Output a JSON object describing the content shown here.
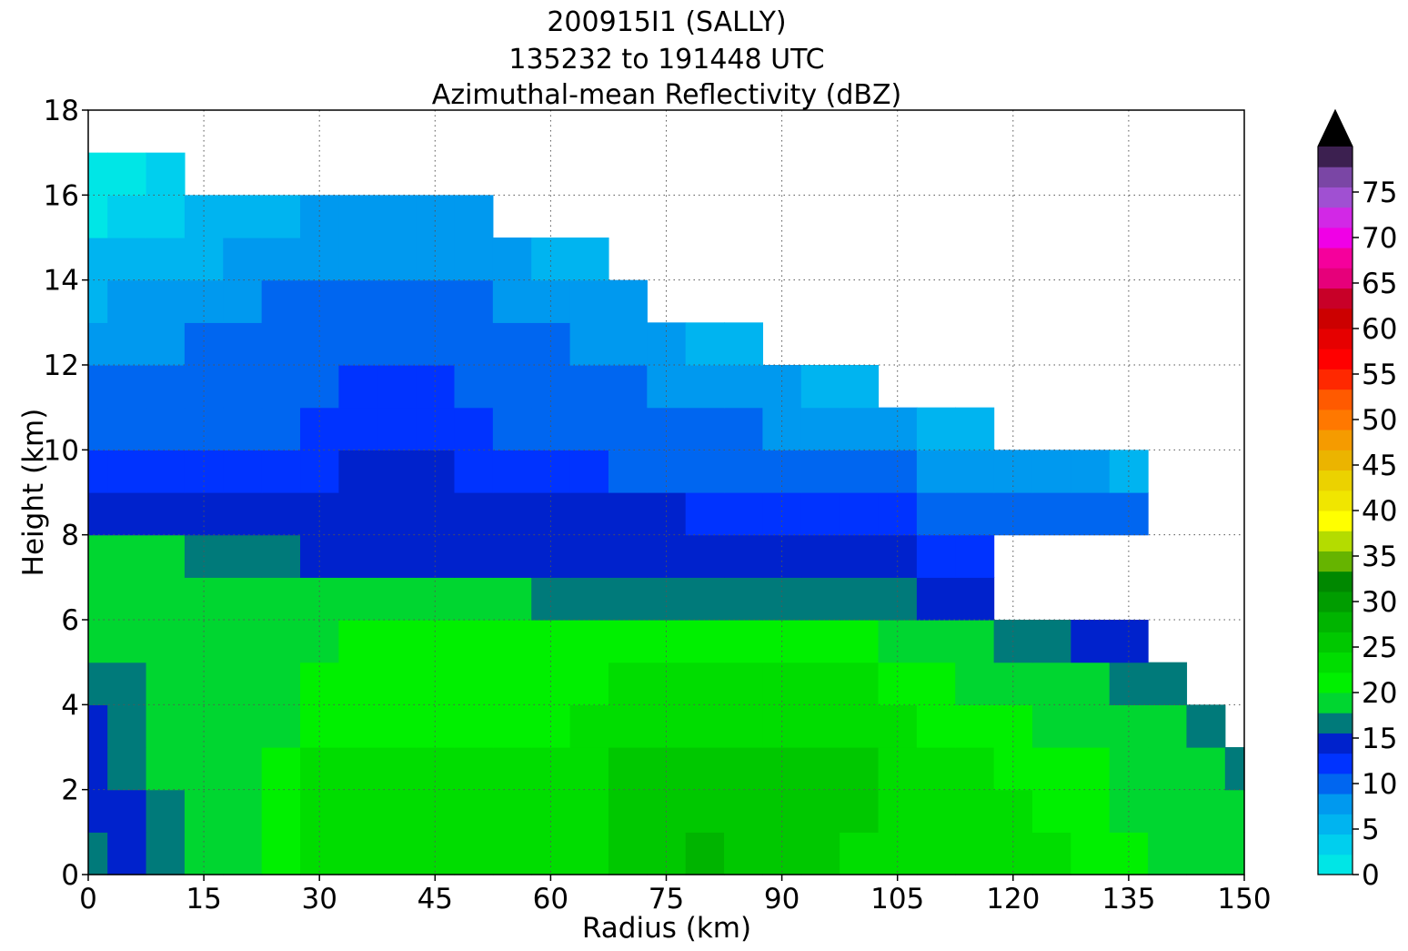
{
  "chart_data": {
    "type": "heatmap",
    "title": [
      "200915I1 (SALLY)",
      "135232 to 191448 UTC",
      "Azimuthal-mean Reflectivity (dBZ)"
    ],
    "xlabel": "Radius (km)",
    "ylabel": "Height (km)",
    "xlim": [
      0,
      150
    ],
    "ylim": [
      0,
      18
    ],
    "xticks": [
      0,
      15,
      30,
      45,
      60,
      75,
      90,
      105,
      120,
      135,
      150
    ],
    "yticks": [
      0,
      2,
      4,
      6,
      8,
      10,
      12,
      14,
      16,
      18
    ],
    "grid": true,
    "colorbar": {
      "min": 0,
      "max": 80,
      "step": 2.5,
      "extend": "max",
      "tick_labels": [
        0,
        5,
        10,
        15,
        20,
        25,
        30,
        35,
        40,
        45,
        50,
        55,
        60,
        65,
        70,
        75
      ],
      "colors": [
        "#00e6e6",
        "#00cfee",
        "#00b4f0",
        "#0099ef",
        "#0066f0",
        "#0033ff",
        "#0022cc",
        "#007a7a",
        "#00d630",
        "#00f000",
        "#00dd00",
        "#00c800",
        "#00b400",
        "#009d00",
        "#008800",
        "#66b400",
        "#b4dc00",
        "#ffff00",
        "#f0e600",
        "#ebd200",
        "#ebb400",
        "#f59b00",
        "#ff7800",
        "#ff5a00",
        "#ff2800",
        "#ff0000",
        "#e60000",
        "#cc0000",
        "#c80028",
        "#e6007a",
        "#f5009c",
        "#f000e6",
        "#d228e6",
        "#a050d2",
        "#7a46a5",
        "#3c2050"
      ],
      "extend_color": "#000000"
    },
    "reflectivity_field": {
      "units": "dBZ",
      "radius_km": [
        0,
        5,
        10,
        15,
        20,
        25,
        30,
        35,
        40,
        45,
        50,
        55,
        60,
        65,
        70,
        75,
        80,
        85,
        90,
        95,
        100,
        105,
        110,
        115,
        120,
        125,
        130,
        135,
        140,
        145,
        150
      ],
      "height_km": [
        0.5,
        1.5,
        2.5,
        3.5,
        4.5,
        5.5,
        6.5,
        7.5,
        8.5,
        9.5,
        10.5,
        11.5,
        12.5,
        13.5,
        14.5,
        15.5,
        16.5
      ],
      "dbz": [
        [
          19,
          16,
          19,
          22,
          22,
          24,
          26,
          26,
          26,
          26,
          27,
          27,
          26,
          27,
          28,
          28,
          30,
          29,
          28,
          28,
          27,
          27,
          26,
          26,
          25,
          25,
          24,
          23,
          22,
          21,
          20
        ],
        [
          17,
          16,
          18,
          21,
          22,
          24,
          25,
          26,
          26,
          26,
          26,
          26,
          26,
          27,
          28,
          28,
          29,
          29,
          28,
          28,
          28,
          27,
          26,
          26,
          25,
          24,
          23,
          22,
          21,
          21,
          20
        ],
        [
          17,
          18,
          20,
          20,
          22,
          23,
          25,
          25,
          25,
          25,
          25,
          25,
          25,
          27,
          28,
          28,
          28,
          28,
          28,
          28,
          28,
          26,
          25,
          25,
          24,
          24,
          23,
          22,
          21,
          20,
          19
        ],
        [
          17,
          18,
          20,
          20,
          21,
          22,
          24,
          24,
          24,
          24,
          24,
          24,
          24,
          26,
          27,
          27,
          27,
          27,
          27,
          27,
          26,
          25,
          24,
          23,
          23,
          22,
          22,
          21,
          20,
          19,
          null
        ],
        [
          18,
          19,
          20,
          20,
          21,
          22,
          23,
          24,
          24,
          24,
          24,
          24,
          24,
          24,
          25,
          25,
          25,
          25,
          25,
          25,
          25,
          24,
          23,
          22,
          22,
          21,
          20,
          19,
          18,
          null,
          null
        ],
        [
          20,
          21,
          21,
          22,
          22,
          22,
          22,
          23,
          23,
          23,
          23,
          23,
          23,
          23,
          23,
          23,
          23,
          23,
          23,
          23,
          23,
          22,
          21,
          20,
          19,
          18,
          16,
          15,
          null,
          null,
          null
        ],
        [
          21,
          20,
          20,
          20,
          20,
          20,
          20,
          20,
          20,
          20,
          20,
          20,
          19,
          19,
          19,
          19,
          19,
          19,
          19,
          18,
          18,
          18,
          17,
          16,
          null,
          null,
          null,
          null,
          null,
          null,
          null
        ],
        [
          21,
          20,
          20,
          19,
          18,
          18,
          17,
          17,
          17,
          17,
          17,
          16,
          16,
          16,
          16,
          16,
          16,
          16,
          15,
          15,
          15,
          15,
          14,
          13,
          null,
          null,
          null,
          null,
          null,
          null,
          null
        ],
        [
          17,
          17,
          17,
          17,
          17,
          16,
          16,
          17,
          17,
          17,
          16,
          15,
          15,
          15,
          15,
          15,
          14,
          14,
          14,
          13,
          13,
          13,
          12,
          12,
          11,
          11,
          11,
          10,
          null,
          null,
          null
        ],
        [
          14,
          14,
          14,
          14,
          14,
          14,
          14,
          15,
          15,
          15,
          14,
          13,
          13,
          13,
          12,
          12,
          12,
          12,
          11,
          11,
          10,
          10,
          9,
          9,
          8,
          8,
          8,
          7,
          null,
          null,
          null
        ],
        [
          12,
          12,
          12,
          12,
          12,
          12,
          13,
          14,
          14,
          14,
          13,
          12,
          12,
          12,
          11,
          11,
          10,
          10,
          9,
          9,
          8,
          8,
          7,
          7,
          null,
          null,
          null,
          null,
          null,
          null,
          null
        ],
        [
          11,
          11,
          11,
          11,
          11,
          12,
          12,
          13,
          13,
          13,
          12,
          11,
          11,
          10,
          10,
          9,
          9,
          8,
          8,
          7,
          7,
          null,
          null,
          null,
          null,
          null,
          null,
          null,
          null,
          null,
          null
        ],
        [
          9,
          9,
          9,
          10,
          10,
          11,
          11,
          12,
          12,
          12,
          11,
          10,
          10,
          9,
          8,
          8,
          7,
          7,
          null,
          null,
          null,
          null,
          null,
          null,
          null,
          null,
          null,
          null,
          null,
          null,
          null
        ],
        [
          7,
          8,
          8,
          9,
          9,
          10,
          10,
          10,
          11,
          11,
          10,
          9,
          9,
          8,
          8,
          null,
          null,
          null,
          null,
          null,
          null,
          null,
          null,
          null,
          null,
          null,
          null,
          null,
          null,
          null,
          null
        ],
        [
          5,
          5,
          6,
          7,
          8,
          8,
          9,
          9,
          9,
          9,
          9,
          8,
          7,
          7,
          null,
          null,
          null,
          null,
          null,
          null,
          null,
          null,
          null,
          null,
          null,
          null,
          null,
          null,
          null,
          null,
          null
        ],
        [
          2,
          3,
          4,
          5,
          6,
          7,
          8,
          8,
          8,
          8,
          8,
          null,
          null,
          null,
          null,
          null,
          null,
          null,
          null,
          null,
          null,
          null,
          null,
          null,
          null,
          null,
          null,
          null,
          null,
          null,
          null
        ],
        [
          1,
          2,
          3,
          null,
          null,
          null,
          null,
          null,
          null,
          null,
          null,
          null,
          null,
          null,
          null,
          null,
          null,
          null,
          null,
          null,
          null,
          null,
          null,
          null,
          null,
          null,
          null,
          null,
          null,
          null,
          null
        ]
      ]
    }
  }
}
